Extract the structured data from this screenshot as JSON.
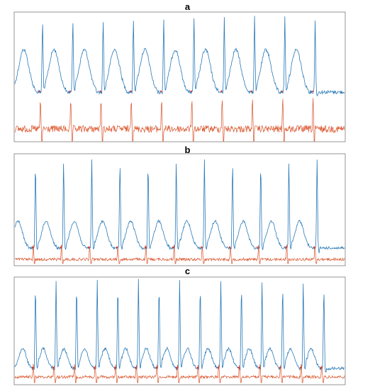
{
  "chart_data": [
    {
      "type": "line",
      "title": "a",
      "series": [
        {
          "color": "#2a7ab8"
        },
        {
          "color": "#d9542b"
        }
      ],
      "beats": 10
    },
    {
      "type": "line",
      "title": "b",
      "series": [
        {
          "color": "#2a7ab8"
        },
        {
          "color": "#d9542b"
        }
      ],
      "beats": 11
    },
    {
      "type": "line",
      "title": "c",
      "series": [
        {
          "color": "#2a7ab8"
        },
        {
          "color": "#d9542b"
        }
      ],
      "beats": 15
    }
  ]
}
